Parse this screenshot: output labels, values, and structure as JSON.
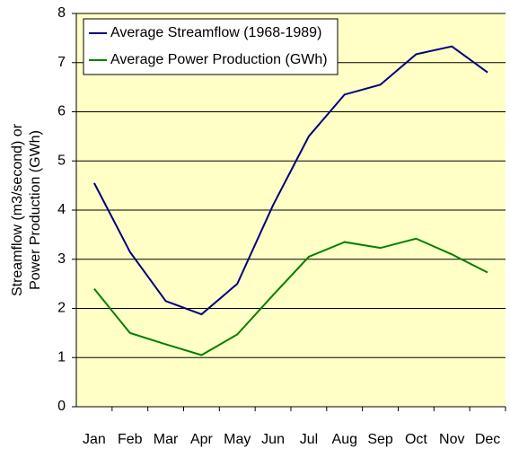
{
  "chart_data": {
    "type": "line",
    "ylabel": [
      "Streamflow (m3/second) or",
      "Power Production (GWh)"
    ],
    "categories": [
      "Jan",
      "Feb",
      "Mar",
      "Apr",
      "May",
      "Jun",
      "Jul",
      "Aug",
      "Sep",
      "Oct",
      "Nov",
      "Dec"
    ],
    "series": [
      {
        "name": "Average Streamflow (1968-1989)",
        "color": "#000080",
        "values": [
          4.55,
          3.15,
          2.15,
          1.88,
          2.5,
          4.1,
          5.5,
          6.35,
          6.55,
          7.17,
          7.33,
          6.8
        ]
      },
      {
        "name": "Average Power Production (GWh)",
        "color": "#008000",
        "values": [
          2.4,
          1.5,
          1.27,
          1.05,
          1.47,
          2.27,
          3.05,
          3.35,
          3.23,
          3.42,
          3.1,
          2.73
        ]
      }
    ],
    "ylim": [
      0,
      8
    ],
    "yticks": [
      0,
      1,
      2,
      3,
      4,
      5,
      6,
      7,
      8
    ],
    "grid": true,
    "legend": "upper-left"
  }
}
